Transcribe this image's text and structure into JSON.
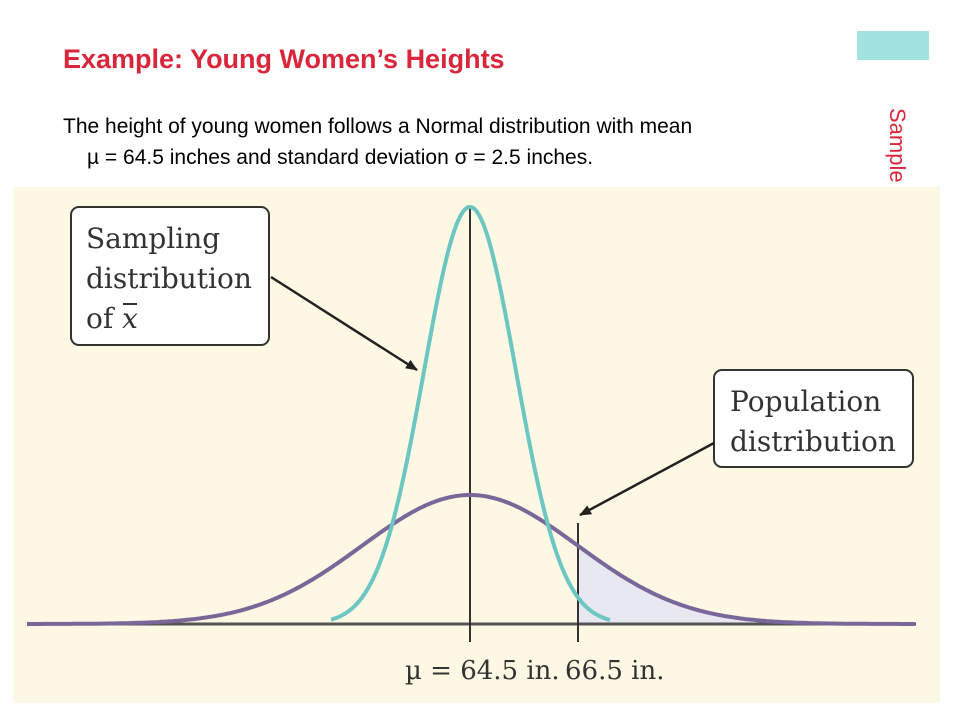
{
  "slide": {
    "title": "Example: Young Women’s Heights",
    "body_line1": "The height of young women follows a Normal distribution with mean",
    "body_line2": "µ = 64.5 inches and standard deviation σ = 2.5 inches.",
    "side_label": "Sample Means"
  },
  "figure": {
    "sampling_box": {
      "line1": "Sampling",
      "line2": "distribution",
      "line3_prefix": "of ",
      "line3_var": "x"
    },
    "population_box": {
      "line1": "Population",
      "line2": "distribution"
    },
    "axis_label_mean": "µ = 64.5 in.",
    "axis_label_value": "66.5 in.",
    "colors": {
      "panel_bg": "#fcf8e3",
      "sampling_curve": "#6ec6c3",
      "population_curve": "#7a6799",
      "shaded_area": "#e8e8f0",
      "axis": "#555555",
      "title_red": "#d9263b"
    }
  }
}
